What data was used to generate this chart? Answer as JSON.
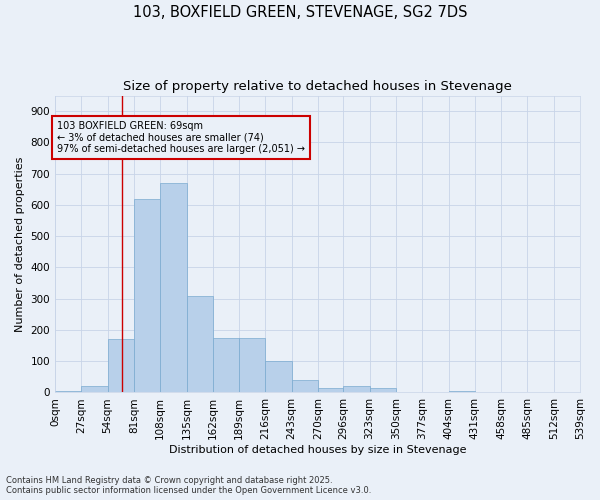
{
  "title": "103, BOXFIELD GREEN, STEVENAGE, SG2 7DS",
  "subtitle": "Size of property relative to detached houses in Stevenage",
  "xlabel": "Distribution of detached houses by size in Stevenage",
  "ylabel": "Number of detached properties",
  "footer_line1": "Contains HM Land Registry data © Crown copyright and database right 2025.",
  "footer_line2": "Contains public sector information licensed under the Open Government Licence v3.0.",
  "bar_edges": [
    0,
    27,
    54,
    81,
    108,
    135,
    162,
    189,
    216,
    243,
    270,
    296,
    323,
    350,
    377,
    404,
    431,
    458,
    485,
    512,
    539
  ],
  "bar_values": [
    5,
    20,
    170,
    620,
    670,
    310,
    175,
    175,
    100,
    40,
    15,
    20,
    15,
    0,
    0,
    5,
    0,
    0,
    0,
    0
  ],
  "bar_color": "#b8d0ea",
  "bar_edge_color": "#7aaad0",
  "grid_color": "#c8d4e8",
  "bg_color": "#eaf0f8",
  "vline_x": 69,
  "vline_color": "#cc0000",
  "annotation_text": "103 BOXFIELD GREEN: 69sqm\n← 3% of detached houses are smaller (74)\n97% of semi-detached houses are larger (2,051) →",
  "annotation_box_color": "#cc0000",
  "ylim": [
    0,
    950
  ],
  "yticks": [
    0,
    100,
    200,
    300,
    400,
    500,
    600,
    700,
    800,
    900
  ],
  "tick_label_fontsize": 7.5,
  "title_fontsize": 10.5,
  "subtitle_fontsize": 9.5,
  "xlabel_fontsize": 8,
  "ylabel_fontsize": 8,
  "annotation_fontsize": 7,
  "footer_fontsize": 6
}
